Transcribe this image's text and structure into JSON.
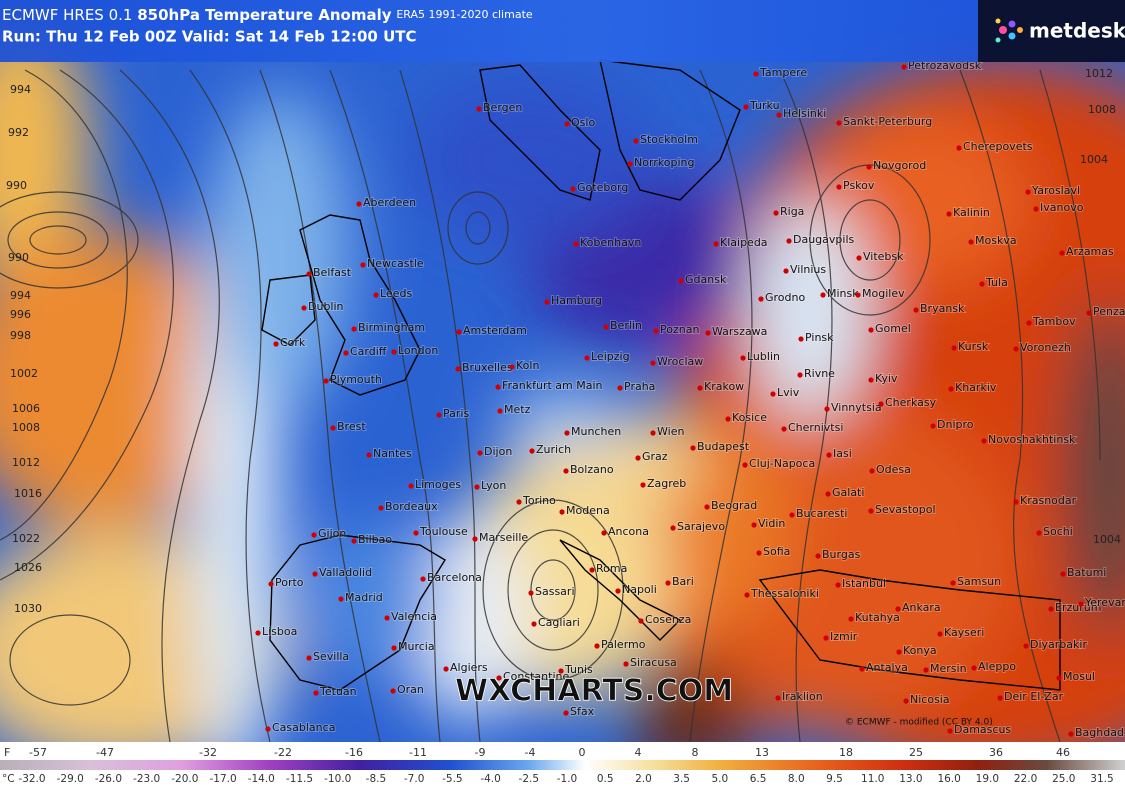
{
  "header": {
    "model": "ECMWF HRES 0.1",
    "title": "850hPa Temperature Anomaly",
    "climate": "ERA5 1991-2020 climate",
    "run": "Run: Thu 12 Feb 00Z Valid: Sat 14 Feb 12:00 UTC",
    "logo": "metdesk"
  },
  "watermark": "WXCHARTS.COM",
  "credit": "© ECMWF - modified (CC BY 4.0)",
  "isobars": [
    994,
    992,
    990,
    990,
    994,
    996,
    998,
    1002,
    1006,
    1008,
    1012,
    1016,
    1022,
    1026,
    1030,
    1012,
    1008,
    1004,
    1004
  ],
  "cities": [
    "Tampere",
    "Petrozavodsk",
    "Bergen",
    "Oslo",
    "Turku",
    "Helsinki",
    "Sankt-Peterburg",
    "Stockholm",
    "Norrkoping",
    "Cherepovets",
    "Goteborg",
    "Novgorod",
    "Pskov",
    "Yaroslavl",
    "Kalinin",
    "Ivanovo",
    "Aberdeen",
    "Riga",
    "Kobenhavn",
    "Klaipeda",
    "Daugavpils",
    "Moskva",
    "Arzamas",
    "Vitebsk",
    "Vilnius",
    "Newcastle",
    "Belfast",
    "Minsk",
    "Mogilev",
    "Tula",
    "Leeds",
    "Gdansk",
    "Grodno",
    "Dublin",
    "Hamburg",
    "Bryansk",
    "Tambov",
    "Penza",
    "Amsterdam",
    "Berlin",
    "Poznan",
    "Warszawa",
    "Birmingham",
    "Pinsk",
    "Gomel",
    "Kursk",
    "Voronezh",
    "Cork",
    "Cardiff",
    "London",
    "Bruxelles",
    "Koln",
    "Leipzig",
    "Wroclaw",
    "Lublin",
    "Rivne",
    "Kyiv",
    "Plymouth",
    "Frankfurt am Main",
    "Praha",
    "Krakow",
    "Lviv",
    "Kharkiv",
    "Paris",
    "Metz",
    "Vinnytsia",
    "Cherkasy",
    "Brest",
    "Kosice",
    "Chernivtsi",
    "Dnipro",
    "Novoshakhtinsk",
    "Munchen",
    "Wien",
    "Nantes",
    "Dijon",
    "Zurich",
    "Budapest",
    "Bolzano",
    "Graz",
    "Cluj-Napoca",
    "Iasi",
    "Odesa",
    "Limoges",
    "Lyon",
    "Zagreb",
    "Galati",
    "Krasnodar",
    "Bordeaux",
    "Torino",
    "Modena",
    "Beograd",
    "Bucaresti",
    "Sevastopol",
    "Toulouse",
    "Ancona",
    "Sarajevo",
    "Vidin",
    "Sochi",
    "Gijon",
    "Bilbao",
    "Marseille",
    "Sofia",
    "Burgas",
    "Valladolid",
    "Barcelona",
    "Roma",
    "Bari",
    "Istanbul",
    "Samsun",
    "Batumi",
    "Porto",
    "Madrid",
    "Sassari",
    "Napoli",
    "Thessaloniki",
    "Erzurum",
    "Yerevan",
    "Valencia",
    "Kutahya",
    "Ankara",
    "Cagliari",
    "Cosenza",
    "Lisboa",
    "Izmir",
    "Kayseri",
    "Diyarbakir",
    "Murcia",
    "Palermo",
    "Konya",
    "Sevilla",
    "Siracusa",
    "Algiers",
    "Constantine",
    "Tunis",
    "Antalya",
    "Mersin",
    "Aleppo",
    "Mosul",
    "Oran",
    "Tetuan",
    "Sfax",
    "Iraklion",
    "Nicosia",
    "Deir El-Zar",
    "Casablanca",
    "Damascus",
    "Baghdad"
  ],
  "legend": {
    "f_unit": "F",
    "f_values": [
      "-57",
      "-47",
      "-32",
      "-22",
      "-16",
      "-11",
      "-9",
      "-4",
      "0",
      "4",
      "8",
      "13",
      "18",
      "25",
      "36",
      "46"
    ],
    "c_unit": "°C",
    "c_values": [
      "-32.0",
      "-29.0",
      "-26.0",
      "-23.0",
      "-20.0",
      "-17.0",
      "-14.0",
      "-11.5",
      "-10.0",
      "-8.5",
      "-7.0",
      "-5.5",
      "-4.0",
      "-2.5",
      "-1.0",
      "0.5",
      "2.0",
      "3.5",
      "5.0",
      "6.5",
      "8.0",
      "9.5",
      "11.0",
      "13.0",
      "16.0",
      "19.0",
      "22.0",
      "25.0",
      "31.5"
    ]
  }
}
